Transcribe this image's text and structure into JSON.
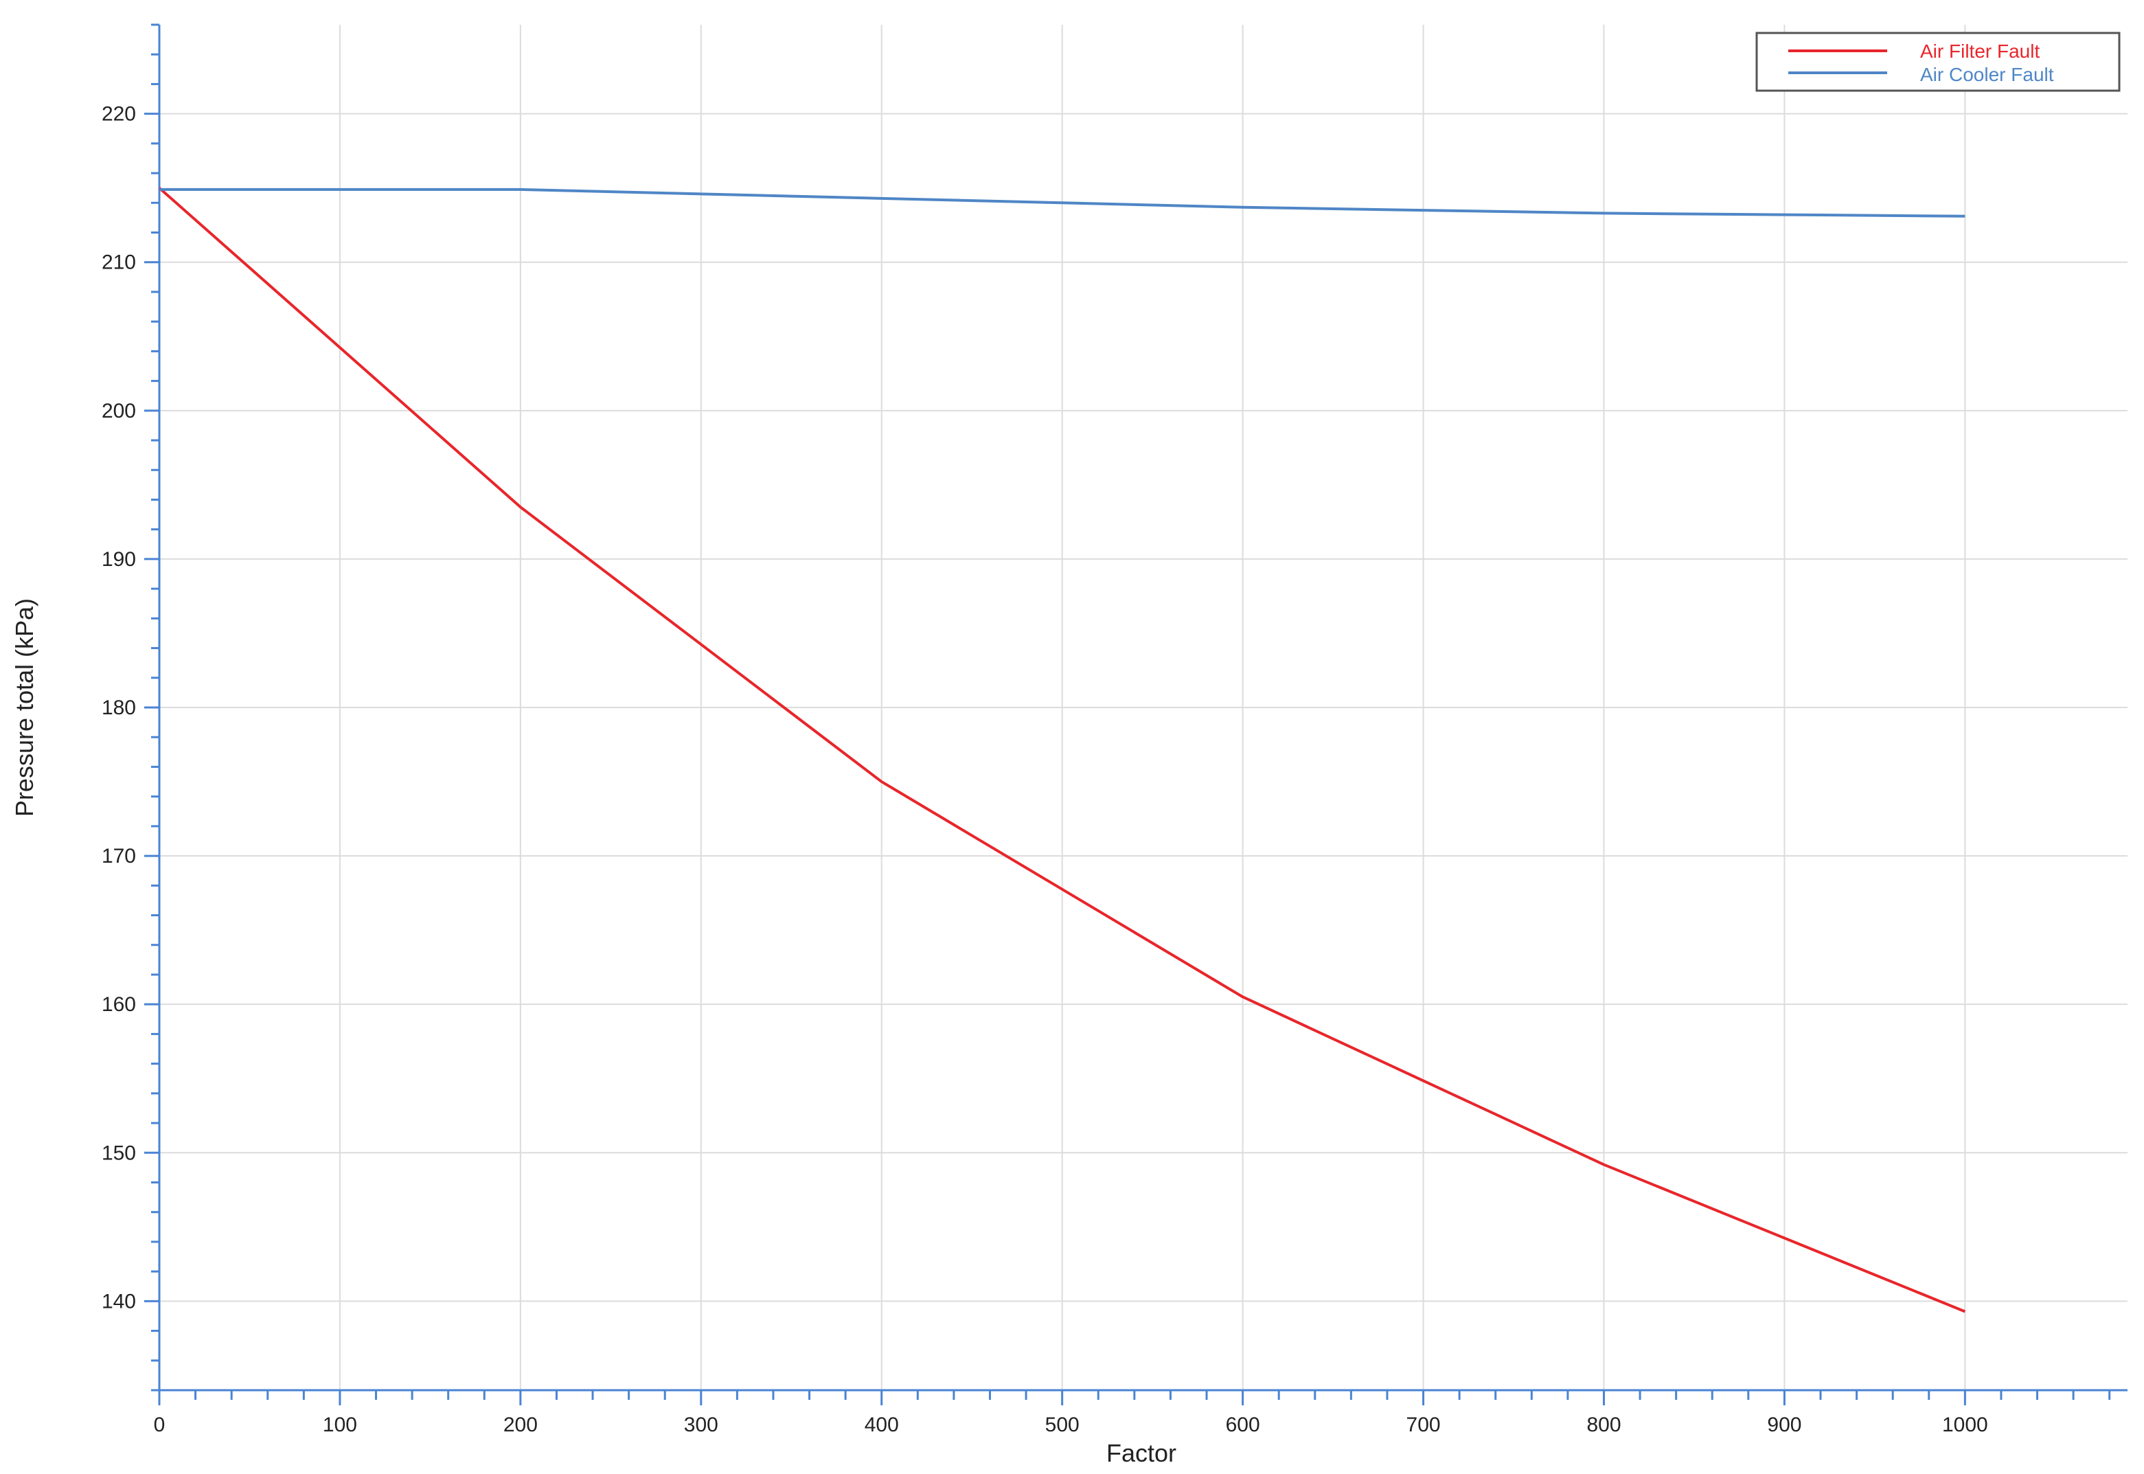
{
  "chart_data": {
    "type": "line",
    "title": "",
    "xlabel": "Factor",
    "ylabel": "Pressure total (kPa)",
    "xlim": [
      0,
      1090
    ],
    "ylim": [
      134,
      226
    ],
    "xticks": [
      0,
      100,
      200,
      300,
      400,
      500,
      600,
      700,
      800,
      900,
      1000
    ],
    "yticks": [
      140,
      150,
      160,
      170,
      180,
      190,
      200,
      210,
      220
    ],
    "grid": true,
    "legend_position": "top-right",
    "series": [
      {
        "name": "Air Filter Fault",
        "color": "#e8262b",
        "x": [
          0,
          200,
          400,
          600,
          800,
          1000
        ],
        "y": [
          215.0,
          193.5,
          175.0,
          160.5,
          149.2,
          139.3
        ]
      },
      {
        "name": "Air Cooler Fault",
        "color": "#4f86c6",
        "x": [
          0,
          200,
          300,
          400,
          500,
          600,
          700,
          800,
          900,
          1000
        ],
        "y": [
          214.9,
          214.9,
          214.6,
          214.3,
          214.0,
          213.7,
          213.5,
          213.3,
          213.2,
          213.1
        ]
      }
    ]
  },
  "colors": {
    "axis": "#4a84d4",
    "grid": "#dcdcdc",
    "legend_border": "#555555"
  }
}
